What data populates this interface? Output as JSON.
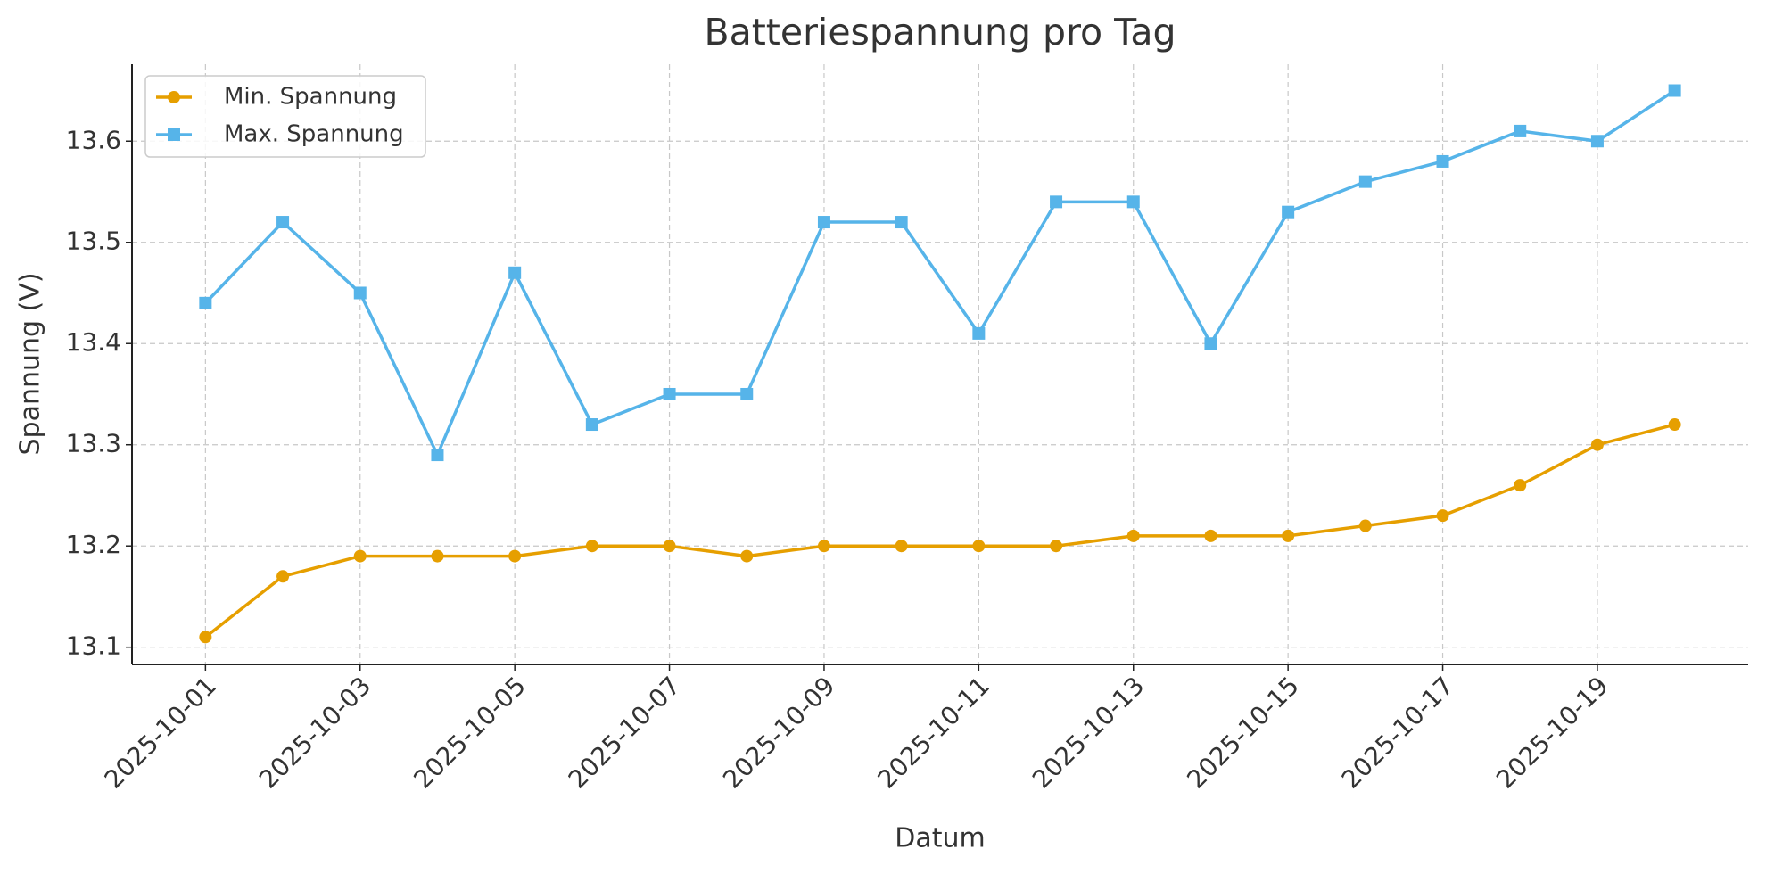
{
  "chart_data": {
    "type": "line",
    "title": "Batteriespannung pro Tag",
    "x_label": "Datum",
    "y_label": "Spannung (V)",
    "x": [
      "2025-10-01",
      "2025-10-02",
      "2025-10-03",
      "2025-10-04",
      "2025-10-05",
      "2025-10-06",
      "2025-10-07",
      "2025-10-08",
      "2025-10-09",
      "2025-10-10",
      "2025-10-11",
      "2025-10-12",
      "2025-10-13",
      "2025-10-14",
      "2025-10-15",
      "2025-10-16",
      "2025-10-17",
      "2025-10-18",
      "2025-10-19",
      "2025-10-20"
    ],
    "xticks": [
      "2025-10-01",
      "2025-10-03",
      "2025-10-05",
      "2025-10-07",
      "2025-10-09",
      "2025-10-11",
      "2025-10-13",
      "2025-10-15",
      "2025-10-17",
      "2025-10-19"
    ],
    "series": [
      {
        "name": "Min. Spannung",
        "color": "#e69f00",
        "marker": "circle",
        "values": [
          13.11,
          13.17,
          13.19,
          13.19,
          13.19,
          13.2,
          13.2,
          13.19,
          13.2,
          13.2,
          13.2,
          13.2,
          13.21,
          13.21,
          13.21,
          13.22,
          13.23,
          13.26,
          13.3,
          13.32
        ]
      },
      {
        "name": "Max. Spannung",
        "color": "#56b4e9",
        "marker": "square",
        "values": [
          13.44,
          13.52,
          13.45,
          13.29,
          13.47,
          13.32,
          13.35,
          13.35,
          13.52,
          13.52,
          13.41,
          13.54,
          13.54,
          13.4,
          13.53,
          13.56,
          13.58,
          13.61,
          13.6,
          13.65
        ]
      }
    ],
    "ylim": [
      13.083,
      13.676
    ],
    "yticks": [
      {
        "value": 13.1,
        "label": "13.1"
      },
      {
        "value": 13.2,
        "label": "13.2"
      },
      13.3,
      13.4,
      13.5,
      13.6
    ],
    "grid": true,
    "legend": "upper left"
  }
}
